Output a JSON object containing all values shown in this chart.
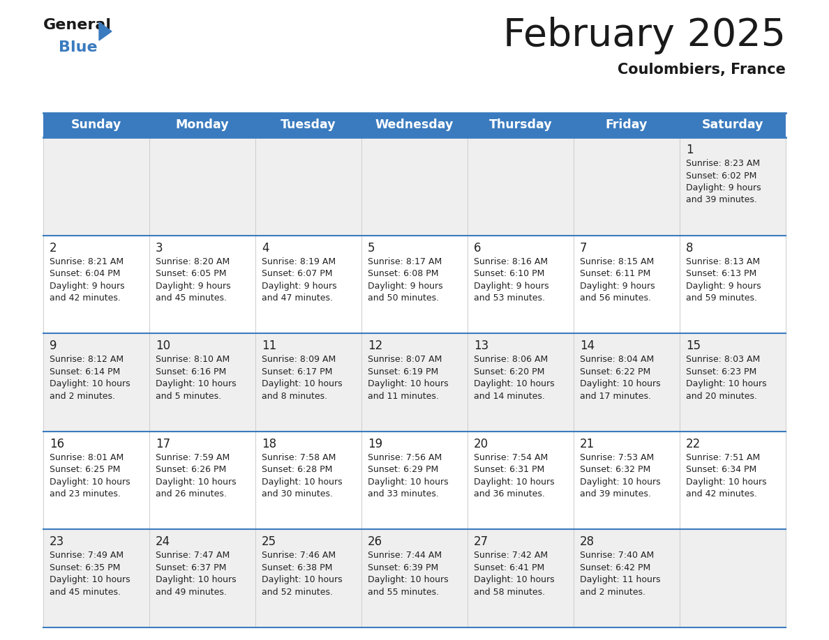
{
  "title": "February 2025",
  "subtitle": "Coulombiers, France",
  "header_bg": "#3a7bbf",
  "header_text_color": "#ffffff",
  "day_names": [
    "Sunday",
    "Monday",
    "Tuesday",
    "Wednesday",
    "Thursday",
    "Friday",
    "Saturday"
  ],
  "bg_color": "#ffffff",
  "cell_bg_row0": "#efefef",
  "cell_bg_row1": "#ffffff",
  "cell_bg_row2": "#efefef",
  "cell_bg_row3": "#ffffff",
  "cell_bg_row4": "#efefef",
  "border_color": "#3a7bbf",
  "separator_color": "#3a7bbf",
  "vert_line_color": "#cccccc",
  "day_number_color": "#222222",
  "info_text_color": "#222222",
  "logo_general_color": "#1a1a1a",
  "logo_blue_color": "#3a7bbf",
  "logo_triangle_color": "#3a7bbf",
  "title_color": "#1a1a1a",
  "subtitle_color": "#1a1a1a",
  "calendar": [
    [
      null,
      null,
      null,
      null,
      null,
      null,
      {
        "day": 1,
        "sunrise": "8:23 AM",
        "sunset": "6:02 PM",
        "daylight_h": "9 hours",
        "daylight_m": "and 39 minutes."
      }
    ],
    [
      {
        "day": 2,
        "sunrise": "8:21 AM",
        "sunset": "6:04 PM",
        "daylight_h": "9 hours",
        "daylight_m": "and 42 minutes."
      },
      {
        "day": 3,
        "sunrise": "8:20 AM",
        "sunset": "6:05 PM",
        "daylight_h": "9 hours",
        "daylight_m": "and 45 minutes."
      },
      {
        "day": 4,
        "sunrise": "8:19 AM",
        "sunset": "6:07 PM",
        "daylight_h": "9 hours",
        "daylight_m": "and 47 minutes."
      },
      {
        "day": 5,
        "sunrise": "8:17 AM",
        "sunset": "6:08 PM",
        "daylight_h": "9 hours",
        "daylight_m": "and 50 minutes."
      },
      {
        "day": 6,
        "sunrise": "8:16 AM",
        "sunset": "6:10 PM",
        "daylight_h": "9 hours",
        "daylight_m": "and 53 minutes."
      },
      {
        "day": 7,
        "sunrise": "8:15 AM",
        "sunset": "6:11 PM",
        "daylight_h": "9 hours",
        "daylight_m": "and 56 minutes."
      },
      {
        "day": 8,
        "sunrise": "8:13 AM",
        "sunset": "6:13 PM",
        "daylight_h": "9 hours",
        "daylight_m": "and 59 minutes."
      }
    ],
    [
      {
        "day": 9,
        "sunrise": "8:12 AM",
        "sunset": "6:14 PM",
        "daylight_h": "10 hours",
        "daylight_m": "and 2 minutes."
      },
      {
        "day": 10,
        "sunrise": "8:10 AM",
        "sunset": "6:16 PM",
        "daylight_h": "10 hours",
        "daylight_m": "and 5 minutes."
      },
      {
        "day": 11,
        "sunrise": "8:09 AM",
        "sunset": "6:17 PM",
        "daylight_h": "10 hours",
        "daylight_m": "and 8 minutes."
      },
      {
        "day": 12,
        "sunrise": "8:07 AM",
        "sunset": "6:19 PM",
        "daylight_h": "10 hours",
        "daylight_m": "and 11 minutes."
      },
      {
        "day": 13,
        "sunrise": "8:06 AM",
        "sunset": "6:20 PM",
        "daylight_h": "10 hours",
        "daylight_m": "and 14 minutes."
      },
      {
        "day": 14,
        "sunrise": "8:04 AM",
        "sunset": "6:22 PM",
        "daylight_h": "10 hours",
        "daylight_m": "and 17 minutes."
      },
      {
        "day": 15,
        "sunrise": "8:03 AM",
        "sunset": "6:23 PM",
        "daylight_h": "10 hours",
        "daylight_m": "and 20 minutes."
      }
    ],
    [
      {
        "day": 16,
        "sunrise": "8:01 AM",
        "sunset": "6:25 PM",
        "daylight_h": "10 hours",
        "daylight_m": "and 23 minutes."
      },
      {
        "day": 17,
        "sunrise": "7:59 AM",
        "sunset": "6:26 PM",
        "daylight_h": "10 hours",
        "daylight_m": "and 26 minutes."
      },
      {
        "day": 18,
        "sunrise": "7:58 AM",
        "sunset": "6:28 PM",
        "daylight_h": "10 hours",
        "daylight_m": "and 30 minutes."
      },
      {
        "day": 19,
        "sunrise": "7:56 AM",
        "sunset": "6:29 PM",
        "daylight_h": "10 hours",
        "daylight_m": "and 33 minutes."
      },
      {
        "day": 20,
        "sunrise": "7:54 AM",
        "sunset": "6:31 PM",
        "daylight_h": "10 hours",
        "daylight_m": "and 36 minutes."
      },
      {
        "day": 21,
        "sunrise": "7:53 AM",
        "sunset": "6:32 PM",
        "daylight_h": "10 hours",
        "daylight_m": "and 39 minutes."
      },
      {
        "day": 22,
        "sunrise": "7:51 AM",
        "sunset": "6:34 PM",
        "daylight_h": "10 hours",
        "daylight_m": "and 42 minutes."
      }
    ],
    [
      {
        "day": 23,
        "sunrise": "7:49 AM",
        "sunset": "6:35 PM",
        "daylight_h": "10 hours",
        "daylight_m": "and 45 minutes."
      },
      {
        "day": 24,
        "sunrise": "7:47 AM",
        "sunset": "6:37 PM",
        "daylight_h": "10 hours",
        "daylight_m": "and 49 minutes."
      },
      {
        "day": 25,
        "sunrise": "7:46 AM",
        "sunset": "6:38 PM",
        "daylight_h": "10 hours",
        "daylight_m": "and 52 minutes."
      },
      {
        "day": 26,
        "sunrise": "7:44 AM",
        "sunset": "6:39 PM",
        "daylight_h": "10 hours",
        "daylight_m": "and 55 minutes."
      },
      {
        "day": 27,
        "sunrise": "7:42 AM",
        "sunset": "6:41 PM",
        "daylight_h": "10 hours",
        "daylight_m": "and 58 minutes."
      },
      {
        "day": 28,
        "sunrise": "7:40 AM",
        "sunset": "6:42 PM",
        "daylight_h": "11 hours",
        "daylight_m": "and 2 minutes."
      },
      null
    ]
  ]
}
